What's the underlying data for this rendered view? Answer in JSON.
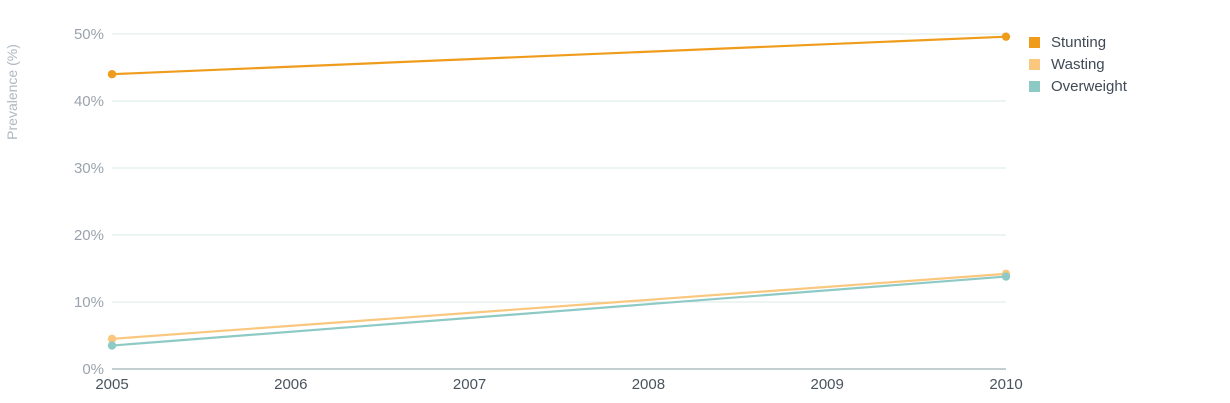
{
  "chart_data": {
    "type": "line",
    "x": [
      2005,
      2010
    ],
    "x_ticks": [
      "2005",
      "2006",
      "2007",
      "2008",
      "2009",
      "2010"
    ],
    "xlim": [
      2005,
      2010
    ],
    "ylabel": "Prevalence (%)",
    "ylim": [
      0,
      50
    ],
    "y_ticks": [
      "0%",
      "10%",
      "20%",
      "30%",
      "40%",
      "50%"
    ],
    "grid": true,
    "legend_position": "top-right",
    "series": [
      {
        "name": "Stunting",
        "color": "#ef9c1c",
        "values": [
          44.0,
          49.6
        ]
      },
      {
        "name": "Wasting",
        "color": "#f9c77e",
        "values": [
          4.5,
          14.2
        ]
      },
      {
        "name": "Overweight",
        "color": "#8ecac5",
        "values": [
          3.5,
          13.8
        ]
      }
    ]
  }
}
